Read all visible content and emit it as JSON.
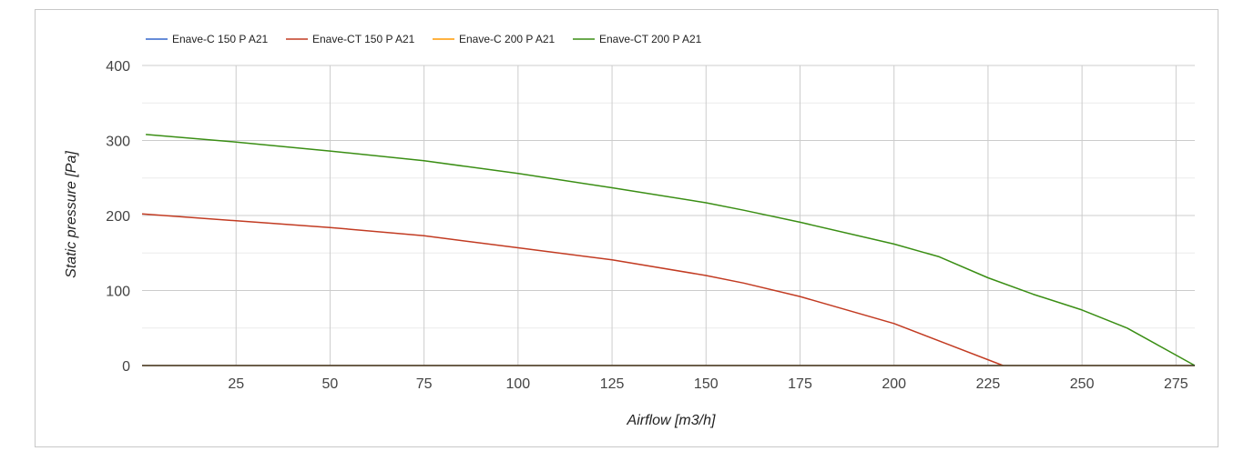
{
  "chart_data": {
    "type": "line",
    "xlabel": "Airflow [m3/h]",
    "ylabel": "Static pressure [Pa]",
    "xlim": [
      0,
      280
    ],
    "ylim": [
      0,
      400
    ],
    "x_ticks": [
      25,
      50,
      75,
      100,
      125,
      150,
      175,
      200,
      225,
      250,
      275
    ],
    "y_ticks": [
      0,
      100,
      200,
      300,
      400
    ],
    "grid": true,
    "legend_position": "top-left",
    "series": [
      {
        "name": "Enave-C 150 P A21",
        "color": "#3366cc",
        "points": [
          [
            0,
            0
          ],
          [
            280,
            0
          ]
        ]
      },
      {
        "name": "Enave-CT 150 P A21",
        "color": "#c23b22",
        "points": [
          [
            0,
            202
          ],
          [
            25,
            193
          ],
          [
            50,
            184
          ],
          [
            75,
            173
          ],
          [
            100,
            157
          ],
          [
            125,
            141
          ],
          [
            150,
            120
          ],
          [
            160,
            110
          ],
          [
            175,
            92
          ],
          [
            200,
            56
          ],
          [
            215,
            27
          ],
          [
            229,
            0
          ]
        ]
      },
      {
        "name": "Enave-C 200 P A21",
        "color": "#ff9900",
        "points": [
          [
            0,
            0
          ],
          [
            280,
            0
          ]
        ]
      },
      {
        "name": "Enave-CT 200 P A21",
        "color": "#3a8e14",
        "points": [
          [
            1,
            308
          ],
          [
            25,
            298
          ],
          [
            50,
            286
          ],
          [
            75,
            273
          ],
          [
            100,
            256
          ],
          [
            125,
            237
          ],
          [
            150,
            217
          ],
          [
            160,
            207
          ],
          [
            175,
            191
          ],
          [
            200,
            162
          ],
          [
            212,
            145
          ],
          [
            225,
            117
          ],
          [
            237,
            95
          ],
          [
            250,
            74
          ],
          [
            262,
            50
          ],
          [
            280,
            0
          ]
        ]
      }
    ]
  }
}
